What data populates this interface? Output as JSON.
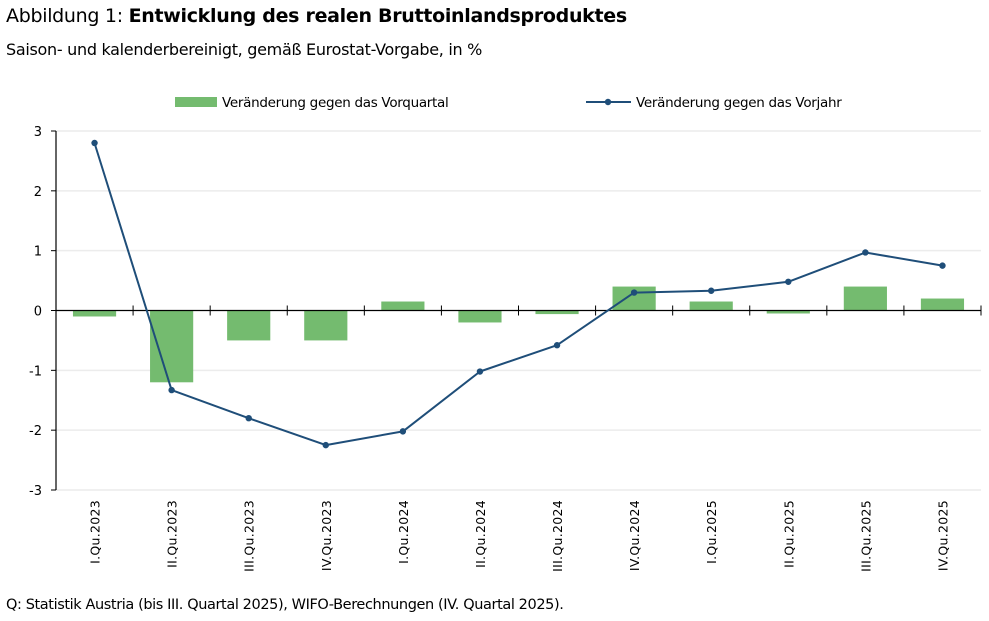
{
  "header": {
    "title_prefix": "Abbildung 1: ",
    "title_bold": "Entwicklung des realen Bruttoinlandsproduktes",
    "subtitle": "Saison- und kalenderbereinigt, gemäß Eurostat-Vorgabe, in %"
  },
  "footer": {
    "source": "Q: Statistik Austria (bis III. Quartal 2025), WIFO-Berechnungen (IV. Quartal 2025)."
  },
  "chart_data": {
    "type": "bar",
    "title": "Entwicklung des realen Bruttoinlandsproduktes",
    "subtitle": "Saison- und kalenderbereinigt, gemäß Eurostat-Vorgabe, in %",
    "xlabel": "",
    "ylabel": "",
    "ylim": [
      -3,
      3
    ],
    "yticks": [
      3,
      2,
      1,
      0,
      -1,
      -2,
      -3
    ],
    "grid": true,
    "legend_position": "top",
    "categories": [
      "I.Qu.2023",
      "II.Qu.2023",
      "III.Qu.2023",
      "IV.Qu.2023",
      "I.Qu.2024",
      "II.Qu.2024",
      "III.Qu.2024",
      "IV.Qu.2024",
      "I.Qu.2025",
      "II.Qu.2025",
      "III.Qu.2025",
      "IV.Qu.2025"
    ],
    "series": [
      {
        "name": "Veränderung gegen das Vorquartal",
        "type": "bar",
        "color": "#74bb6f",
        "values": [
          -0.1,
          -1.2,
          -0.5,
          -0.5,
          0.15,
          -0.2,
          -0.06,
          0.4,
          0.15,
          -0.05,
          0.4,
          0.2
        ]
      },
      {
        "name": "Veränderung gegen das Vorjahr",
        "type": "line",
        "color": "#1f4e79",
        "values": [
          2.8,
          -1.33,
          -1.8,
          -2.25,
          -2.02,
          -1.02,
          -0.58,
          0.3,
          0.33,
          0.48,
          0.97,
          0.75
        ]
      }
    ]
  }
}
